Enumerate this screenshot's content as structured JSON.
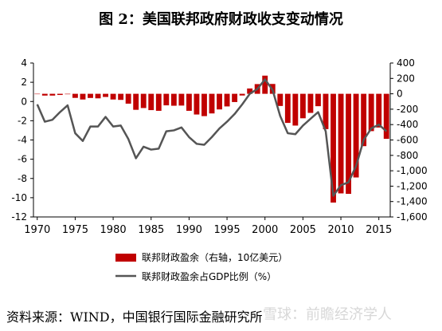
{
  "title": "图 2：美国联邦政府财政收支变动情况",
  "source": "资料来源：WIND，中国银行国际金融研究所",
  "watermark": "雪球：前瞻经济学人",
  "colors": {
    "bar": "#c00000",
    "line": "#555555",
    "axis": "#000000"
  },
  "chart_data": {
    "type": "bar+line",
    "x_ticks": [
      1970,
      1975,
      1980,
      1985,
      1990,
      1995,
      2000,
      2005,
      2010,
      2015
    ],
    "x": [
      1970,
      1971,
      1972,
      1973,
      1974,
      1975,
      1976,
      1977,
      1978,
      1979,
      1980,
      1981,
      1982,
      1983,
      1984,
      1985,
      1986,
      1987,
      1988,
      1989,
      1990,
      1991,
      1992,
      1993,
      1994,
      1995,
      1996,
      1997,
      1998,
      1999,
      2000,
      2001,
      2002,
      2003,
      2004,
      2005,
      2006,
      2007,
      2008,
      2009,
      2010,
      2011,
      2012,
      2013,
      2014,
      2015,
      2016
    ],
    "left_axis": {
      "min": -12,
      "max": 4,
      "ticks": [
        4,
        2,
        0,
        -2,
        -4,
        -6,
        -8,
        -10,
        -12
      ]
    },
    "right_axis": {
      "min": -1600,
      "max": 400,
      "ticks": [
        "400",
        "200",
        "0",
        "-200",
        "-400",
        "-600",
        "-800",
        "-1,000",
        "-1,200",
        "-1,400",
        "-1,600"
      ]
    },
    "series": [
      {
        "name": "联邦财政盈余（右轴，10亿美元）",
        "type": "bar",
        "axis": "right",
        "values": [
          -3,
          -23,
          -23,
          -15,
          -6,
          -53,
          -74,
          -54,
          -59,
          -41,
          -74,
          -79,
          -128,
          -208,
          -185,
          -212,
          -221,
          -150,
          -155,
          -153,
          -221,
          -269,
          -290,
          -255,
          -203,
          -164,
          -107,
          -22,
          69,
          126,
          236,
          128,
          -158,
          -378,
          -413,
          -318,
          -248,
          -161,
          -459,
          -1413,
          -1294,
          -1300,
          -1087,
          -680,
          -485,
          -438,
          -585
        ]
      },
      {
        "name": "联邦财政盈余占GDP比例（%）",
        "type": "line",
        "axis": "left",
        "values": [
          -0.3,
          -2.1,
          -1.9,
          -1.1,
          -0.4,
          -3.3,
          -4.1,
          -2.6,
          -2.6,
          -1.6,
          -2.6,
          -2.5,
          -3.9,
          -5.9,
          -4.7,
          -5.0,
          -4.9,
          -3.1,
          -3.0,
          -2.7,
          -3.7,
          -4.4,
          -4.5,
          -3.7,
          -2.8,
          -2.1,
          -1.3,
          -0.3,
          0.8,
          1.3,
          2.3,
          1.2,
          -1.5,
          -3.3,
          -3.4,
          -2.5,
          -1.8,
          -1.1,
          -3.1,
          -9.8,
          -8.7,
          -8.4,
          -6.7,
          -4.0,
          -2.8,
          -2.4,
          -3.1
        ]
      }
    ],
    "xlabel": "",
    "ylabel_left": "",
    "ylabel_right": "",
    "legend_position": "bottom-center",
    "grid": false
  }
}
